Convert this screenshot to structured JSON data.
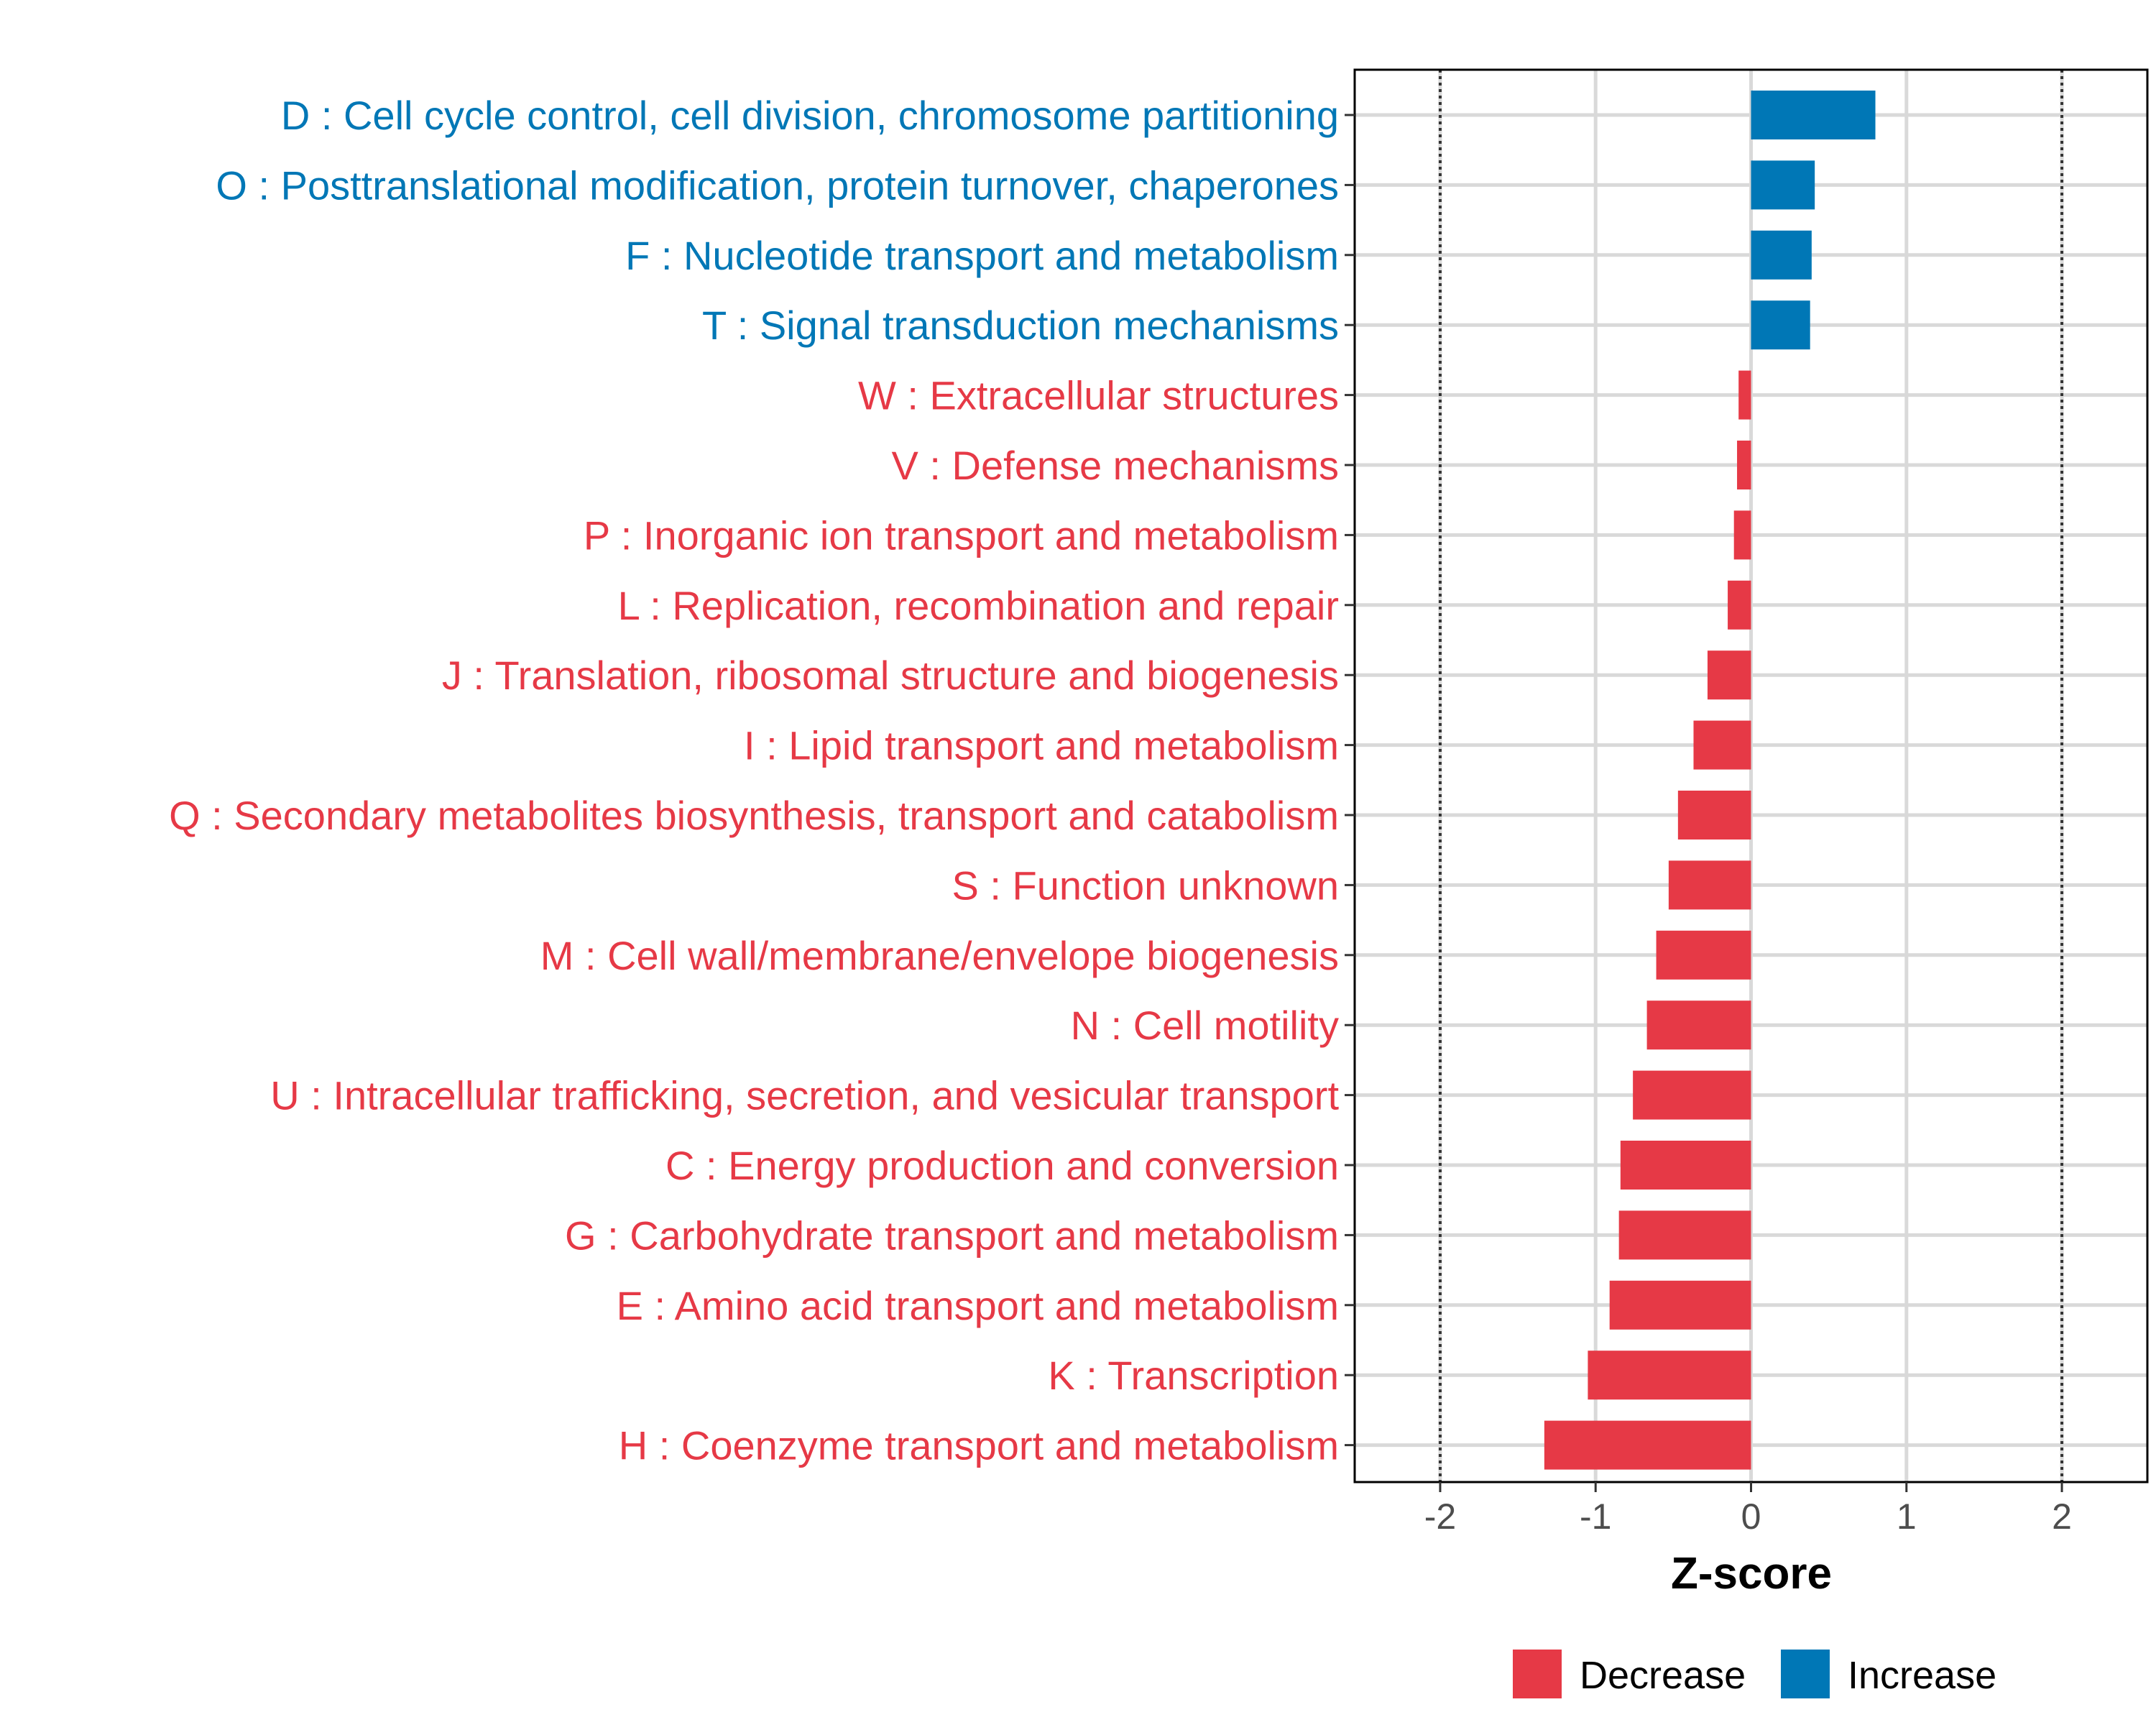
{
  "colors": {
    "decrease": "#E63946",
    "increase": "#0077B6"
  },
  "chart_data": {
    "type": "bar",
    "orientation": "horizontal",
    "title": "",
    "xlabel": "Z-score",
    "ylabel": "",
    "xlim": [
      -2.55,
      2.55
    ],
    "xticks": [
      -2,
      -1,
      0,
      1,
      2
    ],
    "xtick_labels": [
      "-2",
      "-1",
      "0",
      "1",
      "2"
    ],
    "reference_lines": [
      -2,
      2
    ],
    "grid": true,
    "legend_position": "bottom",
    "legend": [
      {
        "label": "Decrease",
        "key": "decrease"
      },
      {
        "label": "Increase",
        "key": "increase"
      }
    ],
    "categories": [
      "D : Cell cycle control, cell division, chromosome partitioning",
      "O : Posttranslational modification, protein turnover, chaperones",
      "F : Nucleotide transport and metabolism",
      "T : Signal transduction mechanisms",
      "W : Extracellular structures",
      "V : Defense mechanisms",
      "P : Inorganic ion transport and metabolism",
      "L : Replication, recombination and repair",
      "J : Translation, ribosomal structure and biogenesis",
      "I : Lipid transport and metabolism",
      "Q : Secondary metabolites biosynthesis, transport and catabolism",
      "S : Function unknown",
      "M : Cell wall/membrane/envelope biogenesis",
      "N : Cell motility",
      "U : Intracellular trafficking, secretion, and vesicular transport",
      "C : Energy production and conversion",
      "G : Carbohydrate transport and metabolism",
      "E : Amino acid transport and metabolism",
      "K : Transcription",
      "H : Coenzyme transport and metabolism"
    ],
    "values": [
      0.8,
      0.41,
      0.39,
      0.38,
      -0.08,
      -0.09,
      -0.11,
      -0.15,
      -0.28,
      -0.37,
      -0.47,
      -0.53,
      -0.61,
      -0.67,
      -0.76,
      -0.84,
      -0.85,
      -0.91,
      -1.05,
      -1.33
    ],
    "groups": [
      "increase",
      "increase",
      "increase",
      "increase",
      "decrease",
      "decrease",
      "decrease",
      "decrease",
      "decrease",
      "decrease",
      "decrease",
      "decrease",
      "decrease",
      "decrease",
      "decrease",
      "decrease",
      "decrease",
      "decrease",
      "decrease",
      "decrease"
    ]
  }
}
